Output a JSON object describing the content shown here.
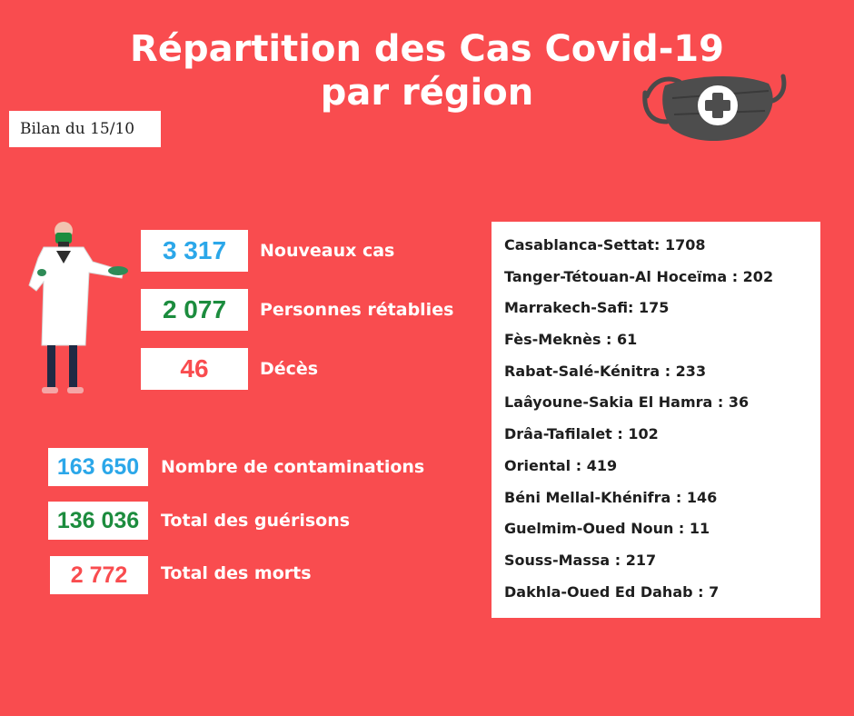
{
  "header": {
    "title_line1": "Répartition des Cas Covid-19",
    "title_line2": "par région",
    "date_label": "Bilan du 15/10"
  },
  "icons": {
    "mask": "face-mask-medical-cross-icon",
    "doctor": "doctor-illustration-icon"
  },
  "colors": {
    "background": "#f94c4f",
    "blue": "#2ba7e9",
    "green": "#1c8c3e",
    "red": "#f94c4f",
    "panel": "#ffffff",
    "text_dark": "#1e1e1e"
  },
  "today": [
    {
      "value": "3 317",
      "label": "Nouveaux cas",
      "color": "#2ba7e9"
    },
    {
      "value": "2 077",
      "label": "Personnes rétablies",
      "color": "#1c8c3e"
    },
    {
      "value": "46",
      "label": "Décès",
      "color": "#f94c4f"
    }
  ],
  "totals": [
    {
      "value": "163 650",
      "label": "Nombre de contaminations",
      "color": "#2ba7e9"
    },
    {
      "value": "136 036",
      "label": "Total des guérisons",
      "color": "#1c8c3e"
    },
    {
      "value": "2 772",
      "label": "Total des morts",
      "color": "#f94c4f"
    }
  ],
  "regions": [
    "Casablanca-Settat: 1708",
    "Tanger-Tétouan-Al Hoceïma : 202",
    "Marrakech-Safi: 175",
    "Fès-Meknès : 61",
    "Rabat-Salé-Kénitra : 233",
    "Laâyoune-Sakia El Hamra : 36",
    "Drâa-Tafilalet : 102",
    "Oriental : 419",
    "Béni Mellal-Khénifra : 146",
    "Guelmim-Oued Noun : 11",
    "Souss-Massa : 217",
    "Dakhla-Oued Ed Dahab : 7"
  ]
}
